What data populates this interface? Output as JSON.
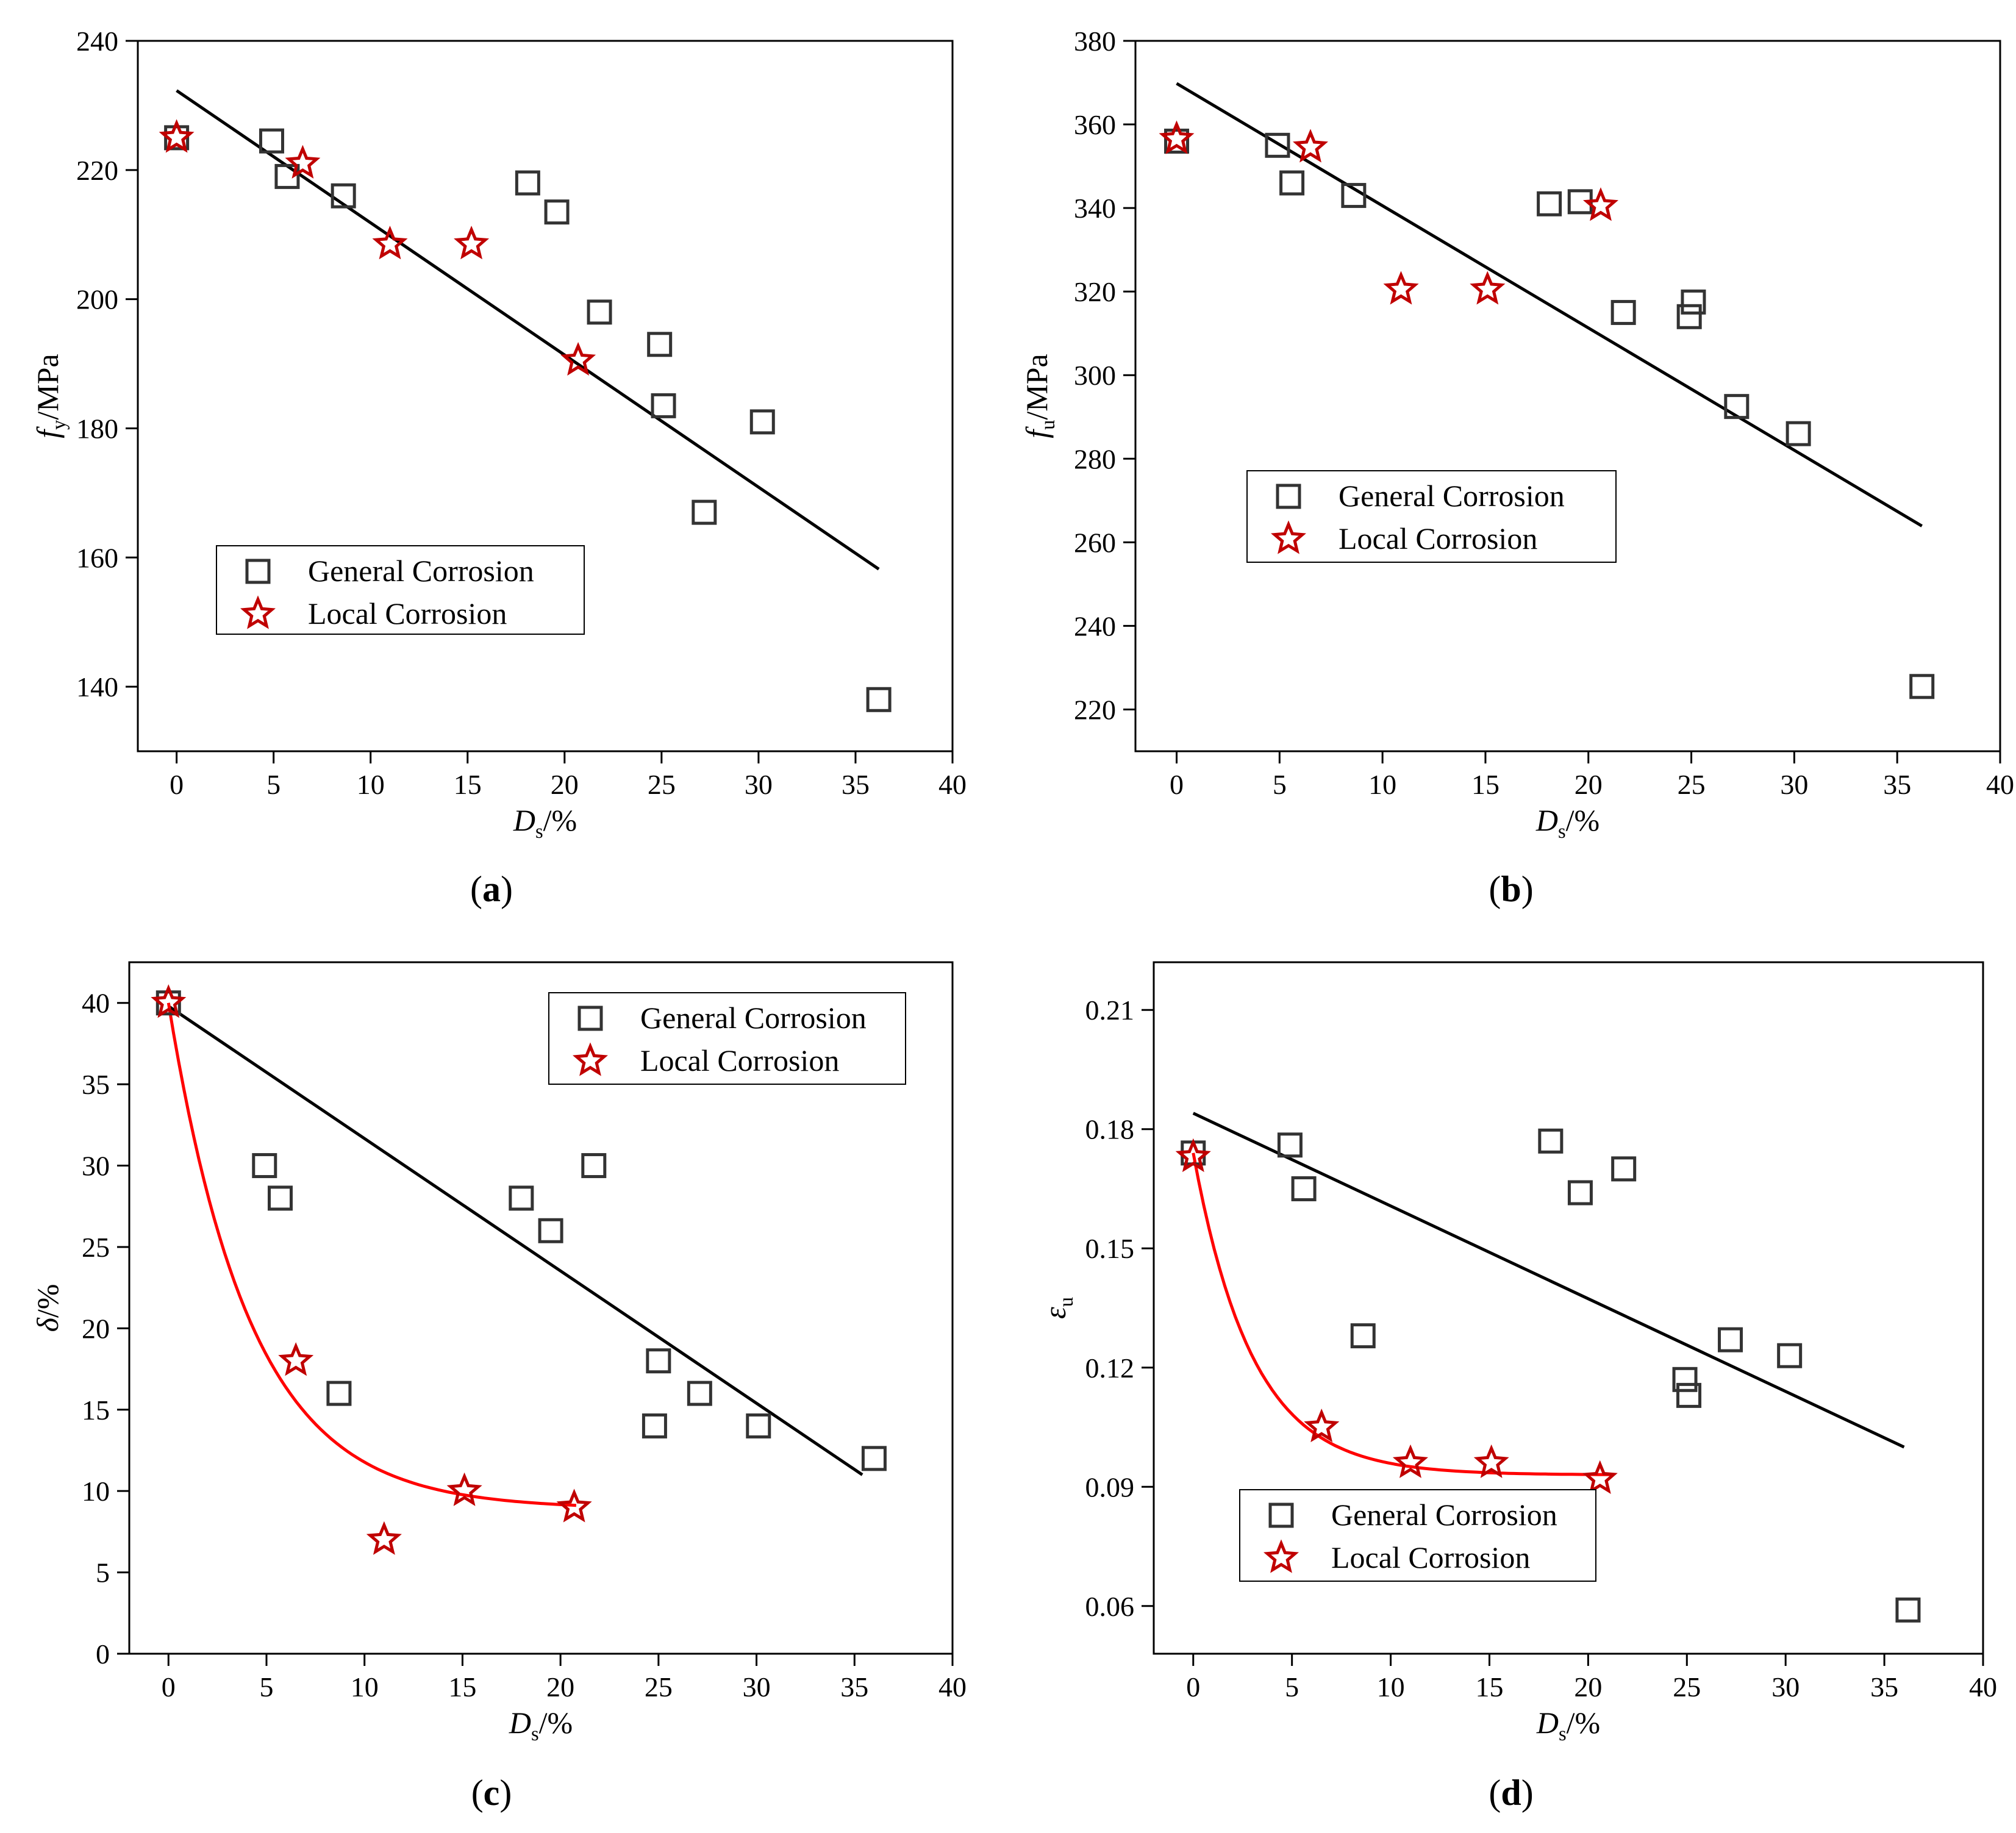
{
  "chart_data": [
    {
      "id": "a",
      "type": "scatter",
      "panel_label": "a",
      "title": "",
      "xlabel": {
        "main": "D",
        "sub": "s",
        "suffix": "/%"
      },
      "ylabel": {
        "main": "f",
        "sub": "y",
        "suffix": "/MPa"
      },
      "xlim": [
        -2,
        40
      ],
      "ylim": [
        130,
        240
      ],
      "xticks": [
        0,
        5,
        10,
        15,
        20,
        25,
        30,
        35,
        40
      ],
      "xtick_labels": [
        "0",
        "5",
        "10",
        "15",
        "20",
        "25",
        "30",
        "35",
        "40"
      ],
      "yticks": [
        140,
        160,
        180,
        200,
        220,
        240
      ],
      "ytick_labels": [
        "140",
        "160",
        "180",
        "200",
        "220",
        "240"
      ],
      "legend": {
        "position": "lower-left",
        "entries": [
          "General Corrosion",
          "Local Corrosion"
        ]
      },
      "series": [
        {
          "name": "General Corrosion",
          "marker": "square",
          "color": "#333333",
          "x": [
            0,
            4.9,
            5.7,
            8.6,
            18.1,
            19.6,
            21.8,
            24.9,
            25.1,
            27.2,
            30.2,
            36.2
          ],
          "y": [
            225,
            224.5,
            219,
            216,
            218,
            213.5,
            198,
            193,
            183.5,
            167,
            181,
            138
          ]
        },
        {
          "name": "Local Corrosion",
          "marker": "star",
          "color": "#c00000",
          "x": [
            0,
            6.5,
            11.0,
            15.2,
            20.7
          ],
          "y": [
            225,
            221,
            208.5,
            208.5,
            190.5
          ]
        }
      ],
      "fits": [
        {
          "name": "Linear fit",
          "color": "#000000",
          "x": [
            0,
            36.2
          ],
          "y": [
            232.3,
            158.2
          ]
        }
      ]
    },
    {
      "id": "b",
      "type": "scatter",
      "panel_label": "b",
      "title": "",
      "xlabel": {
        "main": "D",
        "sub": "s",
        "suffix": "/%"
      },
      "ylabel": {
        "main": "f",
        "sub": "u",
        "suffix": "/MPa"
      },
      "xlim": [
        -2,
        40
      ],
      "ylim": [
        210,
        380
      ],
      "xticks": [
        0,
        5,
        10,
        15,
        20,
        25,
        30,
        35,
        40
      ],
      "xtick_labels": [
        "0",
        "5",
        "10",
        "15",
        "20",
        "25",
        "30",
        "35",
        "40"
      ],
      "yticks": [
        220,
        240,
        260,
        280,
        300,
        320,
        340,
        360,
        380
      ],
      "ytick_labels": [
        "220",
        "240",
        "260",
        "280",
        "300",
        "320",
        "340",
        "360",
        "380"
      ],
      "legend": {
        "position": "center-right",
        "entries": [
          "General Corrosion",
          "Local Corrosion"
        ]
      },
      "series": [
        {
          "name": "General Corrosion",
          "marker": "square",
          "color": "#333333",
          "x": [
            0,
            4.9,
            5.6,
            8.6,
            18.1,
            19.6,
            21.7,
            24.9,
            25.1,
            27.2,
            30.2,
            36.2
          ],
          "y": [
            356,
            355,
            346,
            343,
            341,
            341.5,
            315,
            314,
            317.5,
            292.5,
            286,
            225.5
          ]
        },
        {
          "name": "Local Corrosion",
          "marker": "star",
          "color": "#c00000",
          "x": [
            0,
            6.5,
            10.9,
            15.1,
            20.6
          ],
          "y": [
            356.5,
            354.5,
            320.5,
            320.5,
            340.5
          ]
        }
      ],
      "fits": [
        {
          "name": "Linear fit",
          "color": "#000000",
          "x": [
            0,
            36.2
          ],
          "y": [
            369.8,
            263.9
          ]
        }
      ]
    },
    {
      "id": "c",
      "type": "scatter",
      "panel_label": "c",
      "title": "",
      "xlabel": {
        "main": "D",
        "sub": "s",
        "suffix": "/%"
      },
      "ylabel": {
        "main": "δ",
        "sub": "",
        "suffix": "/%"
      },
      "xlim": [
        -2,
        40
      ],
      "ylim": [
        0,
        42.5
      ],
      "xticks": [
        0,
        5,
        10,
        15,
        20,
        25,
        30,
        35,
        40
      ],
      "xtick_labels": [
        "0",
        "5",
        "10",
        "15",
        "20",
        "25",
        "30",
        "35",
        "40"
      ],
      "yticks": [
        0,
        5,
        10,
        15,
        20,
        25,
        30,
        35,
        40
      ],
      "ytick_labels": [
        "0",
        "5",
        "10",
        "15",
        "20",
        "25",
        "30",
        "35",
        "40"
      ],
      "legend": {
        "position": "top-right",
        "entries": [
          "General Corrosion",
          "Local Corrosion"
        ]
      },
      "series": [
        {
          "name": "General Corrosion",
          "marker": "square",
          "color": "#333333",
          "x": [
            0,
            4.9,
            5.7,
            8.7,
            18.0,
            19.5,
            21.7,
            24.8,
            25.0,
            27.1,
            30.1,
            36.0
          ],
          "y": [
            40,
            30,
            28,
            16,
            28,
            26,
            30,
            14,
            18,
            16,
            14,
            12
          ]
        },
        {
          "name": "Local Corrosion",
          "marker": "star",
          "color": "#c00000",
          "x": [
            0,
            6.5,
            11.0,
            15.1,
            20.7
          ],
          "y": [
            40,
            18,
            7,
            10,
            9
          ]
        }
      ],
      "fits": [
        {
          "name": "Linear fit",
          "color": "#000000",
          "kind": "linear",
          "x": [
            0,
            35.4
          ],
          "y": [
            39.8,
            11
          ]
        },
        {
          "name": "Exponential fit",
          "color": "#ff0000",
          "kind": "exp",
          "x0": 0,
          "x1": 20.8,
          "y0": 8.9,
          "a": 31.1,
          "t": 4.2
        }
      ]
    },
    {
      "id": "d",
      "type": "scatter",
      "panel_label": "d",
      "title": "",
      "xlabel": {
        "main": "D",
        "sub": "s",
        "suffix": "/%"
      },
      "ylabel": {
        "main": "ε",
        "sub": "u",
        "suffix": ""
      },
      "xlim": [
        -2,
        40
      ],
      "ylim": [
        0.048,
        0.222
      ],
      "xticks": [
        0,
        5,
        10,
        15,
        20,
        25,
        30,
        35,
        40
      ],
      "xtick_labels": [
        "0",
        "5",
        "10",
        "15",
        "20",
        "25",
        "30",
        "35",
        "40"
      ],
      "yticks": [
        0.06,
        0.09,
        0.12,
        0.15,
        0.18,
        0.21
      ],
      "ytick_labels": [
        "0.06",
        "0.09",
        "0.12",
        "0.15",
        "0.18",
        "0.21"
      ],
      "legend": {
        "position": "lower-left",
        "entries": [
          "General Corrosion",
          "Local Corrosion"
        ]
      },
      "series": [
        {
          "name": "General Corrosion",
          "marker": "square",
          "color": "#333333",
          "x": [
            0,
            4.9,
            5.6,
            8.6,
            18.1,
            19.6,
            21.8,
            24.9,
            25.1,
            27.2,
            30.2,
            36.2
          ],
          "y": [
            0.174,
            0.176,
            0.165,
            0.128,
            0.177,
            0.164,
            0.17,
            0.117,
            0.113,
            0.127,
            0.123,
            0.059
          ]
        },
        {
          "name": "Local Corrosion",
          "marker": "star",
          "color": "#c00000",
          "x": [
            0,
            6.5,
            11.0,
            15.1,
            20.6
          ],
          "y": [
            0.173,
            0.105,
            0.096,
            0.096,
            0.092
          ]
        }
      ],
      "fits": [
        {
          "name": "Linear fit",
          "color": "#000000",
          "kind": "linear",
          "x": [
            0,
            36.0
          ],
          "y": [
            0.184,
            0.1
          ]
        },
        {
          "name": "Exponential fit",
          "color": "#ff0000",
          "kind": "exp",
          "x0": 0,
          "x1": 21.3,
          "y0": 0.093,
          "a": 0.081,
          "t": 3.0
        }
      ]
    }
  ]
}
